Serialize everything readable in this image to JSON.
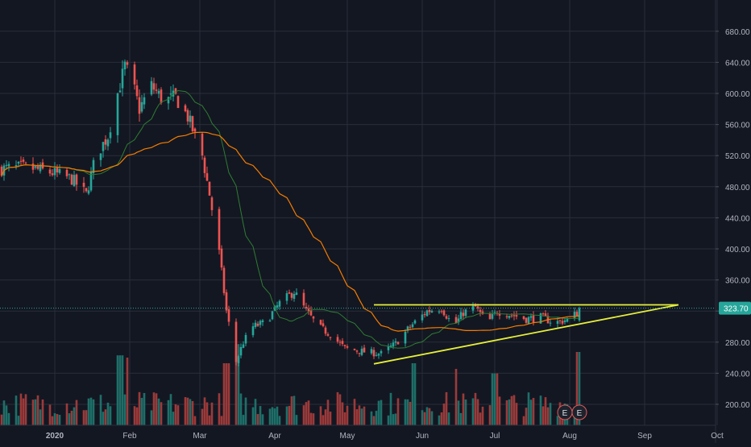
{
  "chart_data": {
    "type": "candlestick",
    "title": "",
    "xlabel": "",
    "ylabel": "",
    "ylim": [
      180,
      700
    ],
    "y_ticks": [
      200,
      240,
      280,
      320,
      360,
      400,
      440,
      480,
      520,
      560,
      600,
      640,
      680
    ],
    "y_tick_labels": [
      "200.00",
      "240.00",
      "280.00",
      "320.00",
      "360.00",
      "400.00",
      "440.00",
      "480.00",
      "520.00",
      "560.00",
      "600.00",
      "640.00",
      "680.00"
    ],
    "x_labels": [
      "2020",
      "Feb",
      "Mar",
      "Apr",
      "May",
      "Jun",
      "Jul",
      "Aug",
      "Sep",
      "Oct"
    ],
    "x_label_positions": [
      "2020-01-01",
      "2020-02-01",
      "2020-03-01",
      "2020-04-01",
      "2020-05-01",
      "2020-06-01",
      "2020-07-01",
      "2020-08-01",
      "2020-09-01",
      "2020-10-01"
    ],
    "last_price": 323.7,
    "last_price_label": "323.70",
    "grid": true,
    "colors": {
      "background": "#131722",
      "grid": "#2a2e39",
      "up": "#26a69a",
      "down": "#ef5350",
      "up_volume": "#1e6f69",
      "down_volume": "#9c3a3a",
      "ma_fast": "#2e7d32",
      "ma_slow": "#f57c00",
      "trendline": "#e6ef3a",
      "axis_text": "#b2b5be",
      "price_badge": "#26a69a"
    },
    "price_anchors": [
      [
        "2019-12-10",
        503
      ],
      [
        "2019-12-20",
        505
      ],
      [
        "2019-12-31",
        498
      ],
      [
        "2020-01-08",
        490
      ],
      [
        "2020-01-14",
        470
      ],
      [
        "2020-01-18",
        520
      ],
      [
        "2020-01-23",
        545
      ],
      [
        "2020-01-27",
        600
      ],
      [
        "2020-01-30",
        635
      ],
      [
        "2020-02-02",
        615
      ],
      [
        "2020-02-05",
        580
      ],
      [
        "2020-02-10",
        610
      ],
      [
        "2020-02-15",
        590
      ],
      [
        "2020-02-20",
        595
      ],
      [
        "2020-02-25",
        570
      ],
      [
        "2020-03-02",
        520
      ],
      [
        "2020-03-05",
        470
      ],
      [
        "2020-03-09",
        395
      ],
      [
        "2020-03-12",
        320
      ],
      [
        "2020-03-16",
        255
      ],
      [
        "2020-03-19",
        280
      ],
      [
        "2020-03-23",
        300
      ],
      [
        "2020-03-28",
        305
      ],
      [
        "2020-04-03",
        330
      ],
      [
        "2020-04-09",
        345
      ],
      [
        "2020-04-14",
        320
      ],
      [
        "2020-04-19",
        300
      ],
      [
        "2020-04-24",
        290
      ],
      [
        "2020-04-30",
        272
      ],
      [
        "2020-05-07",
        268
      ],
      [
        "2020-05-15",
        265
      ],
      [
        "2020-05-21",
        278
      ],
      [
        "2020-05-27",
        300
      ],
      [
        "2020-06-03",
        320
      ],
      [
        "2020-06-09",
        324
      ],
      [
        "2020-06-14",
        300
      ],
      [
        "2020-06-18",
        318
      ],
      [
        "2020-06-23",
        325
      ],
      [
        "2020-06-28",
        304
      ],
      [
        "2020-07-02",
        320
      ],
      [
        "2020-07-08",
        315
      ],
      [
        "2020-07-14",
        310
      ],
      [
        "2020-07-20",
        312
      ],
      [
        "2020-07-26",
        305
      ],
      [
        "2020-08-01",
        310
      ],
      [
        "2020-08-04",
        318
      ],
      [
        "2020-08-05",
        323.7
      ]
    ],
    "volume_scale": [
      0,
      100
    ],
    "volume_spikes": [
      [
        "2020-01-28",
        62
      ],
      [
        "2020-02-01",
        60
      ],
      [
        "2020-03-12",
        55
      ],
      [
        "2020-03-16",
        72
      ],
      [
        "2020-05-29",
        55
      ],
      [
        "2020-06-14",
        50
      ],
      [
        "2020-07-01",
        46
      ],
      [
        "2020-08-05",
        65
      ]
    ],
    "earnings_markers": [
      {
        "date": "2020-07-30",
        "label": "E"
      },
      {
        "date": "2020-08-05",
        "label": "E"
      }
    ],
    "trendlines": [
      {
        "name": "resistance",
        "from": [
          "2020-05-12",
          328
        ],
        "to": [
          "2020-09-15",
          328
        ]
      },
      {
        "name": "support",
        "from": [
          "2020-05-12",
          252
        ],
        "to": [
          "2020-09-15",
          328
        ]
      }
    ]
  }
}
